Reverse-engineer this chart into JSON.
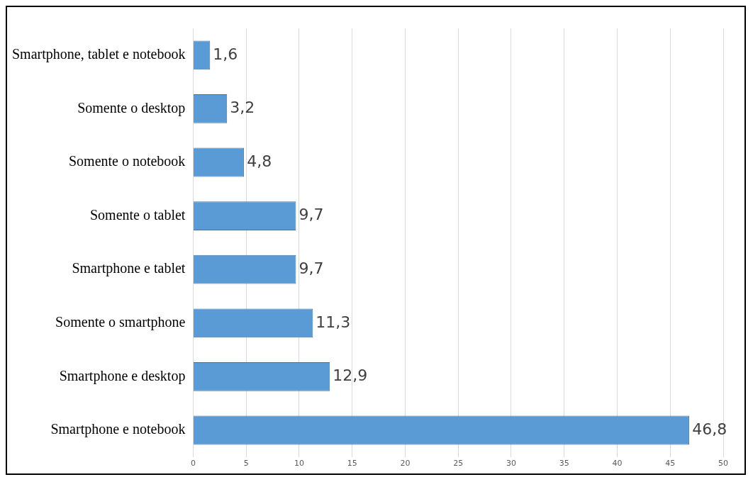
{
  "chart_data": {
    "type": "bar",
    "orientation": "horizontal",
    "categories": [
      "Smartphone, tablet e notebook",
      "Somente o desktop",
      "Somente o notebook",
      "Somente o tablet",
      "Smartphone e tablet",
      "Somente o smartphone",
      "Smartphone e desktop",
      "Smartphone e notebook"
    ],
    "values": [
      1.6,
      3.2,
      4.8,
      9.7,
      9.7,
      11.3,
      12.9,
      46.8
    ],
    "value_labels": [
      "1,6",
      "3,2",
      "4,8",
      "9,7",
      "9,7",
      "11,3",
      "12,9",
      "46,8"
    ],
    "color": "#5b9bd5",
    "xlim": [
      0,
      50
    ],
    "xticks": [
      0,
      5,
      10,
      15,
      20,
      25,
      30,
      35,
      40,
      45,
      50
    ],
    "grid": "x",
    "legend": false
  }
}
